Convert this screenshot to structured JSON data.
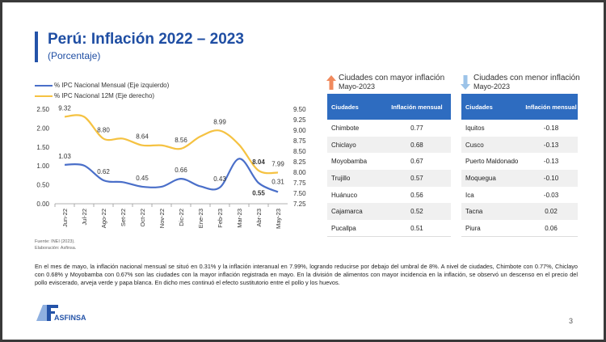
{
  "title": "Perú: Inflación 2022 – 2023",
  "subtitle": "(Porcentaje)",
  "colors": {
    "mensual": "#4a6fc9",
    "anual": "#f5c242",
    "header": "#2e6cc0",
    "title": "#1f4ea3"
  },
  "chart_data": {
    "type": "line",
    "categories": [
      "Jun-22",
      "Jul-22",
      "Ago-22",
      "Set-22",
      "Oct-22",
      "Nov-22",
      "Dic-22",
      "Ene-23",
      "Feb-23",
      "Mar-23",
      "Abr-23",
      "May-23"
    ],
    "series": [
      {
        "name": "% IPC Nacional Mensual (Eje izquierdo)",
        "axis": "left",
        "values": [
          1.03,
          1.01,
          0.62,
          0.57,
          0.45,
          0.45,
          0.66,
          0.46,
          0.43,
          1.19,
          0.55,
          0.31
        ],
        "labels": [
          "1.03",
          "",
          "0.62",
          "",
          "0.45",
          "",
          "0.66",
          "",
          "0.43",
          "",
          "0.55",
          "0.31"
        ]
      },
      {
        "name": "% IPC Nacional 12M (Eje derecho)",
        "axis": "right",
        "values": [
          9.32,
          9.32,
          8.8,
          8.8,
          8.64,
          8.64,
          8.56,
          8.85,
          8.99,
          8.65,
          8.04,
          7.99
        ],
        "labels": [
          "9.32",
          "",
          "8.80",
          "",
          "8.64",
          "",
          "8.56",
          "",
          "8.99",
          "",
          "8.04",
          "7.99"
        ]
      }
    ],
    "yleft": {
      "lim": [
        0,
        2.5
      ],
      "ticks": [
        "0.00",
        "0.50",
        "1.00",
        "1.50",
        "2.00",
        "2.50"
      ]
    },
    "yright": {
      "lim": [
        7.25,
        9.5
      ],
      "ticks": [
        "7.25",
        "7.50",
        "7.75",
        "8.00",
        "8.25",
        "8.50",
        "8.75",
        "9.00",
        "9.25",
        "9.50"
      ]
    },
    "legend": "top-left",
    "grid": false
  },
  "source": [
    "Fuente: INEI (2023).",
    "Elaboración: Asfinsa."
  ],
  "mayor": {
    "title": "Ciudades con mayor inflación",
    "period": "Mayo-2023",
    "icon": "arrow-up-icon",
    "headers": [
      "Ciudades",
      "Inflación mensual"
    ],
    "rows": [
      [
        "Chimbote",
        "0.77"
      ],
      [
        "Chiclayo",
        "0.68"
      ],
      [
        "Moyobamba",
        "0.67"
      ],
      [
        "Trujillo",
        "0.57"
      ],
      [
        "Huánuco",
        "0.56"
      ],
      [
        "Cajamarca",
        "0.52"
      ],
      [
        "Pucallpa",
        "0.51"
      ]
    ]
  },
  "menor": {
    "title": "Ciudades con menor inflación",
    "period": "Mayo-2023",
    "icon": "arrow-down-icon",
    "headers": [
      "Ciudades",
      "Inflación mensual"
    ],
    "rows": [
      [
        "Iquitos",
        "-0.18"
      ],
      [
        "Cusco",
        "-0.13"
      ],
      [
        "Puerto Maldonado",
        "-0.13"
      ],
      [
        "Moquegua",
        "-0.10"
      ],
      [
        "Ica",
        "-0.03"
      ],
      [
        "Tacna",
        "0.02"
      ],
      [
        "Piura",
        "0.06"
      ]
    ]
  },
  "paragraph": "En el mes de mayo, la inflación nacional mensual se situó en 0.31% y la inflación interanual en 7.99%, logrando reducirse por debajo del umbral de 8%. A nivel de ciudades, Chimbote con 0.77%, Chiclayo con 0.68% y Moyobamba con 0.67% son las ciudades con la mayor inflación registrada en mayo. En la división de alimentos con mayor incidencia en la inflación, se observó un descenso en el precio del pollo eviscerado, arveja verde y papa blanca. En dicho mes continuó el efecto sustitutorio entre el pollo y los huevos.",
  "logo": {
    "text": "ASFINSA"
  },
  "page_number": "3"
}
